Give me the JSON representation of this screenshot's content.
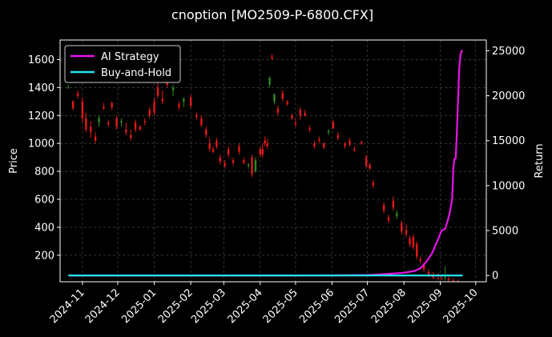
{
  "chart_data": {
    "type": "line",
    "title": "cnoption [MO2509-P-6800.CFX]",
    "xlabel": "",
    "ylabel": "Price",
    "ylabel_right": "Return",
    "x_ticks": [
      "2024-11",
      "2024-12",
      "2025-01",
      "2025-02",
      "2025-03",
      "2025-04",
      "2025-05",
      "2025-06",
      "2025-07",
      "2025-08",
      "2025-09",
      "2025-10"
    ],
    "y_ticks_left": [
      "200",
      "400",
      "600",
      "800",
      "1000",
      "1200",
      "1400",
      "1600"
    ],
    "y_ticks_right": [
      "0",
      "5000",
      "10000",
      "15000",
      "20000",
      "25000"
    ],
    "ylim_left": [
      10,
      1740
    ],
    "ylim_right": [
      -700,
      26200
    ],
    "grid": true,
    "legend_position": "top-left",
    "colors": {
      "background": "#000000",
      "up": "#2e8b22",
      "down": "#e31a1a",
      "ai_strategy": "#e614e6",
      "buy_and_hold": "#22e3f0",
      "grid": "#555555"
    },
    "candles": [
      [
        "2024-10-20",
        1400,
        1420,
        1390,
        1405
      ],
      [
        "2024-10-24",
        1300,
        1310,
        1240,
        1250
      ],
      [
        "2024-10-28",
        1360,
        1380,
        1320,
        1340
      ],
      [
        "2024-11-01",
        1300,
        1330,
        1150,
        1180
      ],
      [
        "2024-11-04",
        1180,
        1220,
        1080,
        1100
      ],
      [
        "2024-11-08",
        1120,
        1160,
        1040,
        1080
      ],
      [
        "2024-11-12",
        1050,
        1080,
        1000,
        1020
      ],
      [
        "2024-11-15",
        1150,
        1200,
        1120,
        1180
      ],
      [
        "2024-11-19",
        1260,
        1290,
        1240,
        1250
      ],
      [
        "2024-11-23",
        1150,
        1170,
        1120,
        1140
      ],
      [
        "2024-11-26",
        1290,
        1300,
        1240,
        1260
      ],
      [
        "2024-11-30",
        1180,
        1200,
        1100,
        1120
      ],
      [
        "2024-12-04",
        1150,
        1180,
        1120,
        1160
      ],
      [
        "2024-12-08",
        1100,
        1150,
        1060,
        1080
      ],
      [
        "2024-12-12",
        1060,
        1100,
        1020,
        1040
      ],
      [
        "2024-12-16",
        1150,
        1170,
        1080,
        1100
      ],
      [
        "2024-12-20",
        1120,
        1130,
        1090,
        1100
      ],
      [
        "2024-12-24",
        1160,
        1180,
        1130,
        1150
      ],
      [
        "2024-12-28",
        1240,
        1260,
        1180,
        1200
      ],
      [
        "2025-01-01",
        1300,
        1330,
        1200,
        1220
      ],
      [
        "2025-01-04",
        1400,
        1460,
        1320,
        1340
      ],
      [
        "2025-01-08",
        1320,
        1380,
        1280,
        1300
      ],
      [
        "2025-01-12",
        1450,
        1480,
        1400,
        1420
      ],
      [
        "2025-01-17",
        1380,
        1420,
        1340,
        1400
      ],
      [
        "2025-01-22",
        1280,
        1300,
        1240,
        1260
      ],
      [
        "2025-01-26",
        1300,
        1330,
        1260,
        1320
      ],
      [
        "2025-02-01",
        1330,
        1350,
        1250,
        1270
      ],
      [
        "2025-02-06",
        1200,
        1220,
        1170,
        1190
      ],
      [
        "2025-02-10",
        1180,
        1200,
        1120,
        1130
      ],
      [
        "2025-02-14",
        1100,
        1120,
        1040,
        1060
      ],
      [
        "2025-02-17",
        1000,
        1040,
        940,
        960
      ],
      [
        "2025-02-20",
        960,
        980,
        930,
        940
      ],
      [
        "2025-02-23",
        1020,
        1040,
        960,
        980
      ],
      [
        "2025-02-26",
        900,
        920,
        850,
        870
      ],
      [
        "2025-03-02",
        860,
        880,
        820,
        840
      ],
      [
        "2025-03-05",
        960,
        980,
        900,
        920
      ],
      [
        "2025-03-09",
        880,
        900,
        840,
        860
      ],
      [
        "2025-03-14",
        980,
        1000,
        920,
        940
      ],
      [
        "2025-03-18",
        880,
        900,
        850,
        860
      ],
      [
        "2025-03-22",
        840,
        860,
        820,
        850
      ],
      [
        "2025-03-25",
        900,
        920,
        760,
        780
      ],
      [
        "2025-03-28",
        800,
        900,
        790,
        880
      ],
      [
        "2025-04-01",
        960,
        980,
        900,
        920
      ],
      [
        "2025-04-03",
        960,
        1000,
        900,
        920
      ],
      [
        "2025-04-05",
        1020,
        1050,
        980,
        1000
      ],
      [
        "2025-04-07",
        1000,
        1030,
        960,
        980
      ],
      [
        "2025-04-09",
        1420,
        1480,
        1400,
        1470
      ],
      [
        "2025-04-11",
        1620,
        1640,
        1600,
        1610
      ],
      [
        "2025-04-13",
        1300,
        1360,
        1280,
        1350
      ],
      [
        "2025-04-16",
        1250,
        1270,
        1200,
        1220
      ],
      [
        "2025-04-20",
        1360,
        1380,
        1300,
        1320
      ],
      [
        "2025-04-24",
        1300,
        1310,
        1270,
        1280
      ],
      [
        "2025-04-28",
        1200,
        1210,
        1170,
        1180
      ],
      [
        "2025-05-01",
        1150,
        1180,
        1120,
        1140
      ],
      [
        "2025-05-05",
        1240,
        1260,
        1170,
        1200
      ],
      [
        "2025-05-09",
        1220,
        1240,
        1190,
        1200
      ],
      [
        "2025-05-13",
        1110,
        1130,
        1080,
        1100
      ],
      [
        "2025-05-17",
        1000,
        1020,
        960,
        980
      ],
      [
        "2025-05-21",
        1030,
        1050,
        1000,
        1020
      ],
      [
        "2025-05-25",
        1000,
        1010,
        960,
        970
      ],
      [
        "2025-05-29",
        1080,
        1100,
        1060,
        1090
      ],
      [
        "2025-06-02",
        1150,
        1170,
        1100,
        1110
      ],
      [
        "2025-06-06",
        1060,
        1080,
        1020,
        1040
      ],
      [
        "2025-06-12",
        1000,
        1010,
        960,
        980
      ],
      [
        "2025-06-16",
        1020,
        1040,
        980,
        990
      ],
      [
        "2025-06-20",
        960,
        980,
        940,
        950
      ],
      [
        "2025-06-26",
        1010,
        1020,
        990,
        1000
      ],
      [
        "2025-06-30",
        900,
        920,
        820,
        840
      ],
      [
        "2025-07-03",
        850,
        860,
        810,
        820
      ],
      [
        "2025-07-06",
        720,
        740,
        680,
        700
      ],
      [
        "2025-07-15",
        560,
        580,
        500,
        520
      ],
      [
        "2025-07-19",
        470,
        490,
        430,
        450
      ],
      [
        "2025-07-23",
        590,
        620,
        520,
        540
      ],
      [
        "2025-07-26",
        480,
        520,
        460,
        500
      ],
      [
        "2025-07-30",
        430,
        450,
        350,
        370
      ],
      [
        "2025-08-03",
        380,
        420,
        330,
        350
      ],
      [
        "2025-08-06",
        320,
        340,
        260,
        280
      ],
      [
        "2025-08-09",
        330,
        350,
        240,
        260
      ],
      [
        "2025-08-12",
        280,
        300,
        170,
        190
      ],
      [
        "2025-08-15",
        170,
        190,
        140,
        160
      ],
      [
        "2025-08-18",
        130,
        150,
        80,
        100
      ],
      [
        "2025-08-22",
        80,
        100,
        40,
        60
      ],
      [
        "2025-08-26",
        60,
        80,
        30,
        40
      ],
      [
        "2025-08-30",
        40,
        70,
        25,
        35
      ],
      [
        "2025-09-02",
        35,
        60,
        20,
        30
      ],
      [
        "2025-09-05",
        40,
        120,
        20,
        60
      ],
      [
        "2025-09-08",
        30,
        50,
        15,
        20
      ],
      [
        "2025-09-12",
        20,
        35,
        10,
        15
      ],
      [
        "2025-09-16",
        15,
        25,
        10,
        12
      ]
    ],
    "series": [
      {
        "name": "AI Strategy",
        "x": [
          "2024-10-20",
          "2025-03-01",
          "2025-05-01",
          "2025-06-01",
          "2025-07-01",
          "2025-07-15",
          "2025-08-01",
          "2025-08-10",
          "2025-08-15",
          "2025-08-20",
          "2025-08-25",
          "2025-08-30",
          "2025-09-02",
          "2025-09-05",
          "2025-09-07",
          "2025-09-09",
          "2025-09-11",
          "2025-09-12",
          "2025-09-13",
          "2025-09-14",
          "2025-09-15",
          "2025-09-17",
          "2025-09-18",
          "2025-09-19",
          "2025-09-20"
        ],
        "y": [
          0,
          0,
          0,
          10,
          50,
          150,
          300,
          500,
          800,
          1500,
          2500,
          4000,
          5000,
          5200,
          6000,
          7000,
          8500,
          12000,
          13000,
          13000,
          16000,
          23000,
          24500,
          25000,
          25000
        ]
      },
      {
        "name": "Buy-and-Hold",
        "x": [
          "2024-10-20",
          "2025-09-20"
        ],
        "y": [
          0,
          0
        ]
      }
    ]
  }
}
